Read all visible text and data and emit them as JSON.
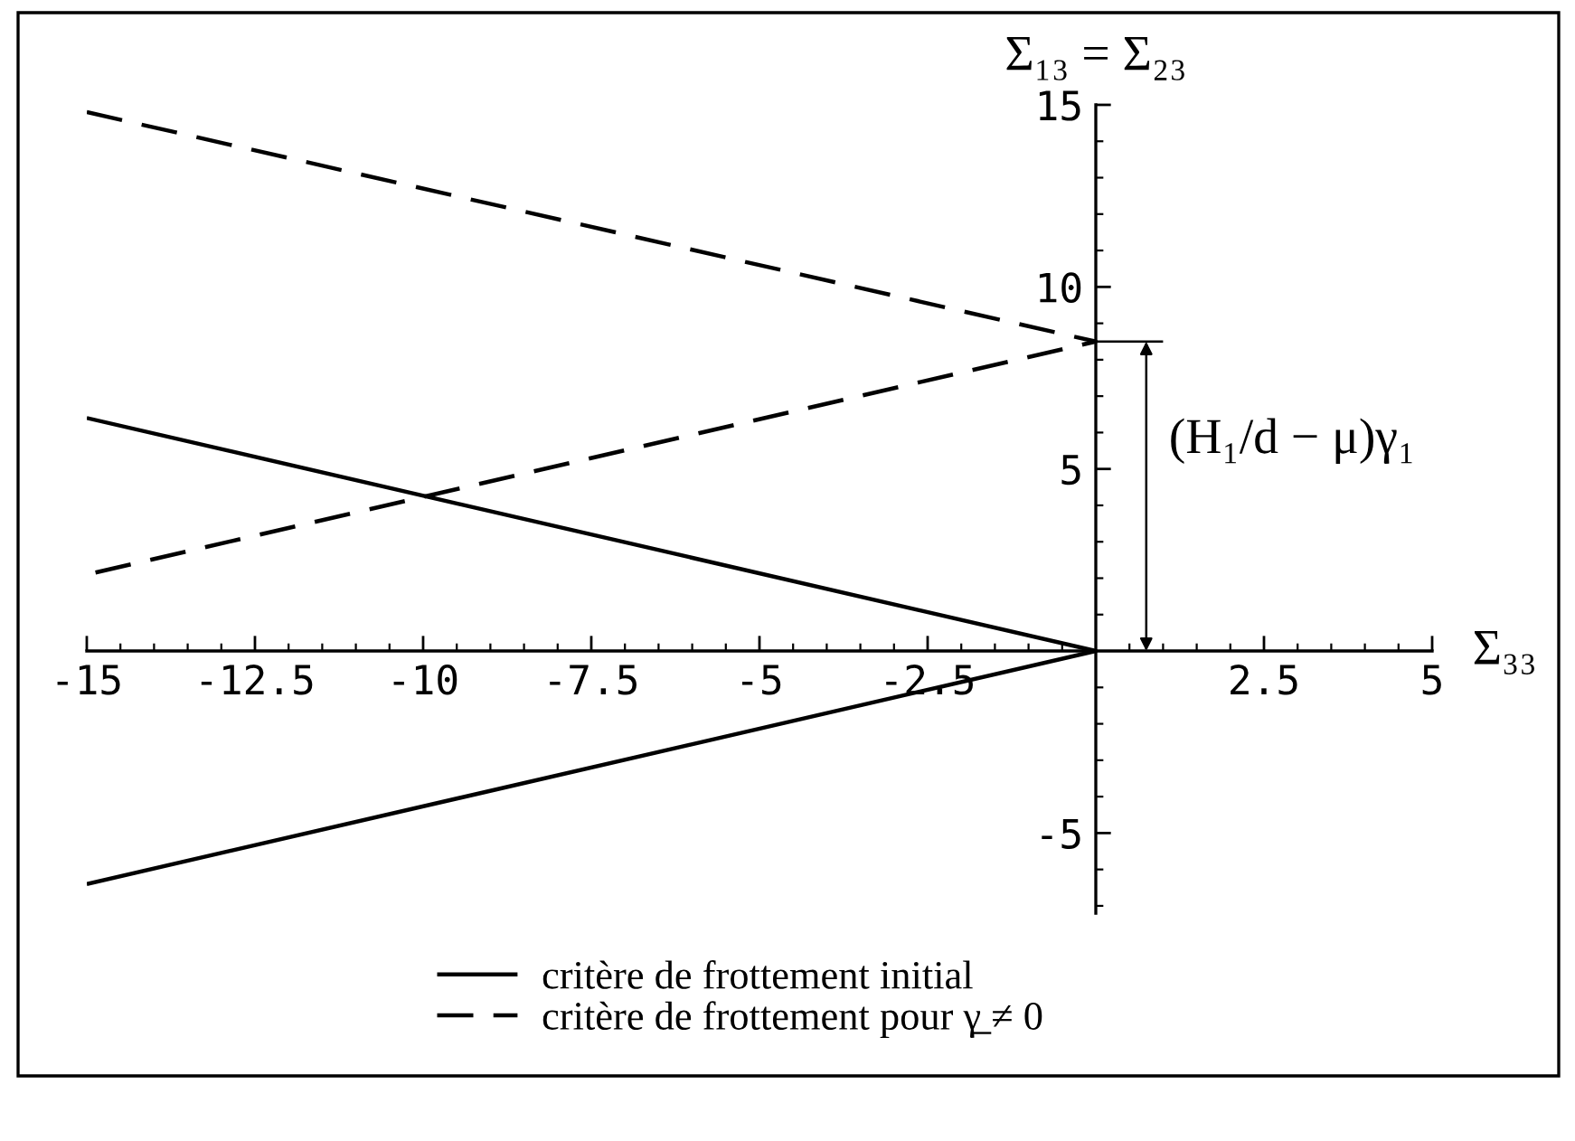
{
  "chart_data": {
    "type": "line",
    "xlabel": "Σ₃₃",
    "ylabel": "Σ₁₃ = Σ₂₃",
    "xlim": [
      -15,
      5
    ],
    "ylim": [
      -7.2,
      15
    ],
    "xticks": [
      -15,
      {
        "value": -14.5,
        "label": null
      },
      {
        "value": -14,
        "label": null
      },
      {
        "value": -13.5,
        "label": null
      },
      {
        "value": -13,
        "label": null
      },
      -12.5,
      {
        "value": -12,
        "label": null
      },
      {
        "value": -11.5,
        "label": null
      },
      {
        "value": -11,
        "label": null
      },
      {
        "value": -10.5,
        "label": null
      },
      -10,
      {
        "value": -9.5,
        "label": null
      },
      {
        "value": -9,
        "label": null
      },
      {
        "value": -8.5,
        "label": null
      },
      {
        "value": -8,
        "label": null
      },
      -7.5,
      {
        "value": -7,
        "label": null
      },
      {
        "value": -6.5,
        "label": null
      },
      {
        "value": -6,
        "label": null
      },
      {
        "value": -5.5,
        "label": null
      },
      -5,
      {
        "value": -4.5,
        "label": null
      },
      {
        "value": -4,
        "label": null
      },
      {
        "value": -3.5,
        "label": null
      },
      {
        "value": -3,
        "label": null
      },
      -2.5,
      {
        "value": -2,
        "label": null
      },
      {
        "value": -1.5,
        "label": null
      },
      {
        "value": -1,
        "label": null
      },
      {
        "value": -0.5,
        "label": null
      },
      {
        "value": 0.5,
        "label": null
      },
      {
        "value": 1,
        "label": null
      },
      {
        "value": 1.5,
        "label": null
      },
      {
        "value": 2,
        "label": null
      },
      2.5,
      {
        "value": 3,
        "label": null
      },
      {
        "value": 3.5,
        "label": null
      },
      {
        "value": 4,
        "label": null
      },
      {
        "value": 4.5,
        "label": null
      },
      5
    ],
    "yticks": [
      {
        "value": -7,
        "label": null
      },
      {
        "value": -6,
        "label": null
      },
      -5,
      {
        "value": -4,
        "label": null
      },
      {
        "value": -3,
        "label": null
      },
      {
        "value": -2,
        "label": null
      },
      {
        "value": -1,
        "label": null
      },
      {
        "value": 1,
        "label": null
      },
      {
        "value": 2,
        "label": null
      },
      {
        "value": 3,
        "label": null
      },
      {
        "value": 4,
        "label": null
      },
      5,
      {
        "value": 6,
        "label": null
      },
      {
        "value": 7,
        "label": null
      },
      {
        "value": 8,
        "label": null
      },
      {
        "value": 9,
        "label": null
      },
      10,
      {
        "value": 11,
        "label": null
      },
      {
        "value": 12,
        "label": null
      },
      {
        "value": 13,
        "label": null
      },
      {
        "value": 14,
        "label": null
      },
      15
    ],
    "series": [
      {
        "name": "critère de frottement initial",
        "color": "#000000",
        "line_style": "solid",
        "x": [
          -15,
          0,
          -15
        ],
        "values": [
          6.4,
          0,
          -6.4
        ]
      },
      {
        "name": "critère de frottement pour γ̲ ≠ 0",
        "color": "#000000",
        "line_style": "dashed",
        "x": [
          -15,
          0,
          -15
        ],
        "values": [
          14.8,
          8.5,
          2.1
        ]
      },
      {
        "color": "#000000",
        "line_style": "solid",
        "x": [
          0,
          1
        ],
        "values": [
          8.5,
          8.5
        ]
      }
    ],
    "annotations": [
      {
        "text": "(H₁/d − μ)γ₁",
        "x": 0.75,
        "y": 8.5
      }
    ],
    "legend": "bottom"
  }
}
